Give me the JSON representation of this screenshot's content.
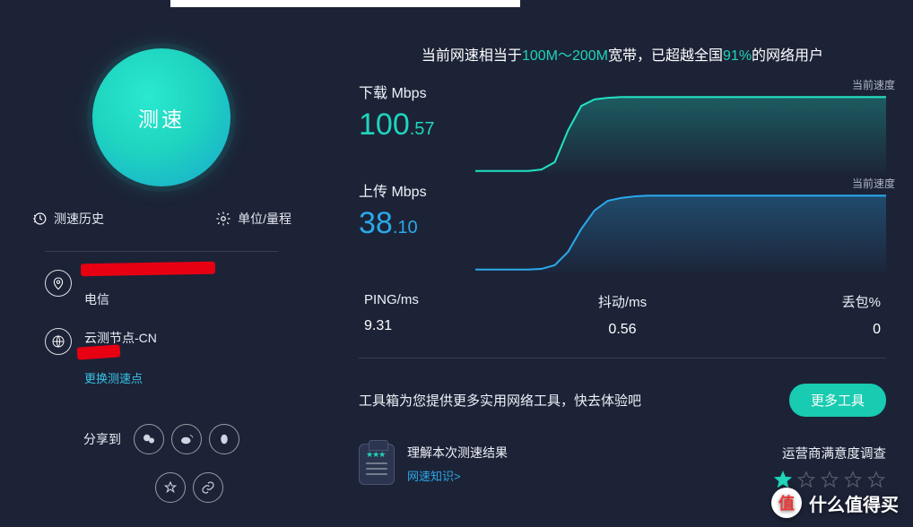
{
  "left": {
    "speed_button": "测速",
    "history": "测速历史",
    "unit": "单位/量程",
    "isp_line1_redacted": true,
    "isp_line2": "电信",
    "node_line1": "云测节点-CN",
    "node_line2_redacted": true,
    "switch_node": "更换测速点",
    "share_label": "分享到"
  },
  "headline": {
    "prefix": "当前网速相当于",
    "range": "100M～200M",
    "mid": "宽带，已超越全国",
    "percent": "91%",
    "suffix": "的网络用户"
  },
  "download": {
    "title": "下载 Mbps",
    "int": "100",
    "dec": ".57",
    "current_label": "当前速度",
    "chart": {
      "type": "area",
      "color_line": "#22e0c0",
      "color_fill_top": "rgba(30,210,185,0.32)",
      "color_fill_bottom": "rgba(30,210,185,0.02)",
      "points": [
        0,
        0,
        0,
        0,
        0,
        2,
        12,
        55,
        88,
        97,
        99,
        100,
        100,
        100,
        100,
        100,
        100,
        100,
        100,
        100,
        100,
        100,
        100,
        100,
        100,
        100,
        100,
        100,
        100,
        100,
        100,
        100
      ],
      "ymax": 110
    }
  },
  "upload": {
    "title": "上传 Mbps",
    "int": "38",
    "dec": ".10",
    "current_label": "当前速度",
    "chart": {
      "type": "area",
      "color_line": "#2aa8e8",
      "color_fill_top": "rgba(42,168,232,0.30)",
      "color_fill_bottom": "rgba(42,168,232,0.02)",
      "points": [
        0,
        0,
        0,
        0,
        0,
        1,
        6,
        24,
        55,
        80,
        93,
        97,
        99,
        100,
        100,
        100,
        100,
        100,
        100,
        100,
        100,
        100,
        100,
        100,
        100,
        100,
        100,
        100,
        100,
        100,
        100,
        100
      ],
      "ymax": 110
    }
  },
  "stats": {
    "ping": {
      "label": "PING/ms",
      "value": "9.31"
    },
    "jitter": {
      "label": "抖动/ms",
      "value": "0.56"
    },
    "loss": {
      "label": "丢包%",
      "value": "0"
    }
  },
  "tools": {
    "text": "工具箱为您提供更多实用网络工具，快去体验吧",
    "more_button": "更多工具"
  },
  "understand": {
    "title": "理解本次测速结果",
    "link": "网速知识>"
  },
  "survey": {
    "title": "运营商满意度调查",
    "rating": 1,
    "star_on_color": "#1fd4b8",
    "star_off_color": "rgba(255,255,255,0.25)"
  },
  "watermark": {
    "badge": "值",
    "text": "什么值得买"
  },
  "colors": {
    "bg": "#1c2337",
    "accent_green": "#1fd4b8",
    "accent_blue": "#2aa8e8",
    "text": "#eef1f8"
  }
}
